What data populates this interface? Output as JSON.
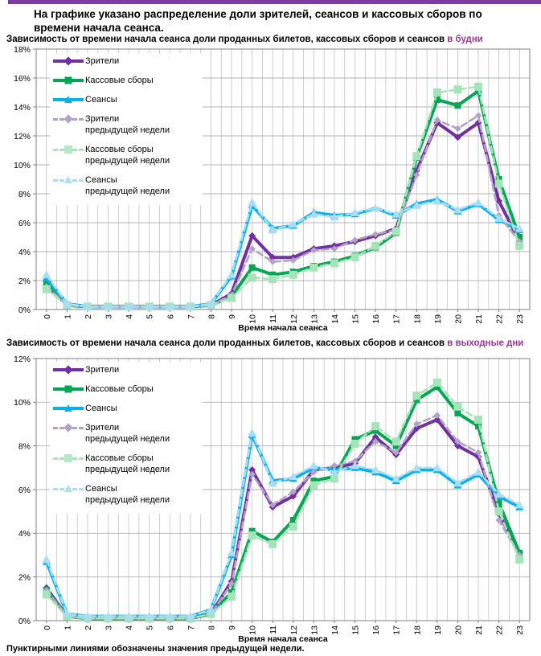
{
  "page": {
    "heading": "На графике указано распределение доли зрителей, сеансов и кассовых сборов по времени начала сеанса.",
    "footer": "Пунктирными линиями обозначены значения предыдущей недели.",
    "accent_bar_color": "#7a3f9d",
    "title_accent_color": "#97399b"
  },
  "legend": [
    {
      "line1": "Зрители",
      "line2": ""
    },
    {
      "line1": "Кассовые сборы",
      "line2": ""
    },
    {
      "line1": "Сеансы",
      "line2": ""
    },
    {
      "line1": "Зрители",
      "line2": "предыдущей недели"
    },
    {
      "line1": "Кассовые сборы",
      "line2": "предыдущей недели"
    },
    {
      "line1": "Сеансы",
      "line2": "предыдущей недели"
    }
  ],
  "chart_data": [
    {
      "type": "line",
      "title": "Зависимость от времени начала сеанса доли проданных билетов, кассовых сборов и сеансов ",
      "title_accent": "в будни",
      "xlabel": "Время начала сеанса",
      "ylim": [
        0,
        18
      ],
      "ystep": 2,
      "y_unit": "%",
      "grid": true,
      "legend_position": "top-left",
      "categories": [
        0,
        1,
        2,
        3,
        4,
        5,
        6,
        7,
        8,
        9,
        10,
        11,
        12,
        13,
        14,
        15,
        16,
        17,
        18,
        19,
        20,
        21,
        22,
        23
      ],
      "series": [
        {
          "name": "Зрители",
          "color": "#7030a0",
          "marker": "diamond",
          "dash": false,
          "values": [
            1.7,
            0.3,
            0.2,
            0.2,
            0.2,
            0.2,
            0.2,
            0.2,
            0.3,
            1.1,
            5.1,
            3.6,
            3.6,
            4.2,
            4.4,
            4.7,
            5.1,
            5.6,
            9.6,
            12.9,
            11.9,
            12.9,
            7.5,
            4.7
          ]
        },
        {
          "name": "Кассовые сборы",
          "color": "#00a651",
          "marker": "square",
          "dash": false,
          "values": [
            1.8,
            0.3,
            0.2,
            0.2,
            0.2,
            0.2,
            0.2,
            0.2,
            0.3,
            0.9,
            2.9,
            2.4,
            2.6,
            3.0,
            3.3,
            3.7,
            4.3,
            5.3,
            10.5,
            14.5,
            14.1,
            15.1,
            9.0,
            5.0
          ]
        },
        {
          "name": "Сеансы",
          "color": "#00b0f0",
          "marker": "triangle",
          "dash": false,
          "values": [
            2.2,
            0.4,
            0.2,
            0.2,
            0.2,
            0.2,
            0.2,
            0.2,
            0.4,
            2.3,
            7.2,
            5.6,
            5.8,
            6.7,
            6.5,
            6.6,
            7.0,
            6.5,
            7.3,
            7.6,
            6.8,
            7.3,
            6.2,
            5.5
          ]
        },
        {
          "name": "Зрители предыдущей недели",
          "color": "#b2a2c9",
          "marker": "diamond",
          "dash": true,
          "values": [
            1.6,
            0.3,
            0.2,
            0.2,
            0.2,
            0.2,
            0.2,
            0.2,
            0.3,
            1.0,
            4.2,
            3.3,
            3.4,
            4.1,
            4.2,
            4.8,
            5.2,
            5.5,
            9.3,
            13.1,
            12.5,
            13.4,
            6.5,
            4.7
          ]
        },
        {
          "name": "Кассовые сборы предыдущей недели",
          "color": "#a5e3b9",
          "marker": "square",
          "dash": true,
          "values": [
            1.4,
            0.3,
            0.2,
            0.2,
            0.2,
            0.2,
            0.2,
            0.2,
            0.3,
            0.8,
            2.2,
            2.1,
            2.4,
            2.9,
            3.2,
            3.6,
            4.4,
            5.4,
            10.6,
            15.0,
            15.2,
            15.4,
            8.7,
            4.4
          ]
        },
        {
          "name": "Сеансы предыдущей недели",
          "color": "#a9ddf3",
          "marker": "triangle",
          "dash": true,
          "values": [
            2.4,
            0.4,
            0.2,
            0.2,
            0.2,
            0.2,
            0.2,
            0.2,
            0.4,
            2.4,
            7.4,
            5.5,
            5.9,
            6.6,
            6.4,
            6.7,
            7.0,
            6.6,
            7.2,
            7.5,
            6.9,
            7.4,
            6.3,
            5.6
          ]
        }
      ]
    },
    {
      "type": "line",
      "title": "Зависимость от времени начала сеанса доли проданных билетов, кассовых сборов и сеансов ",
      "title_accent": "в выходные дни",
      "xlabel": "Время начала сеанса",
      "ylim": [
        0,
        12
      ],
      "ystep": 2,
      "y_unit": "%",
      "grid": true,
      "legend_position": "top-left",
      "categories": [
        0,
        1,
        2,
        3,
        4,
        5,
        6,
        7,
        8,
        9,
        10,
        11,
        12,
        13,
        14,
        15,
        16,
        17,
        18,
        19,
        20,
        21,
        22,
        23
      ],
      "series": [
        {
          "name": "Зрители",
          "color": "#7030a0",
          "marker": "diamond",
          "dash": false,
          "values": [
            1.5,
            0.2,
            0.1,
            0.1,
            0.1,
            0.1,
            0.1,
            0.1,
            0.3,
            1.8,
            6.9,
            5.2,
            5.7,
            6.9,
            7.0,
            7.2,
            8.4,
            7.6,
            8.8,
            9.2,
            8.0,
            7.5,
            4.9,
            3.1
          ]
        },
        {
          "name": "Кассовые сборы",
          "color": "#00a651",
          "marker": "square",
          "dash": false,
          "values": [
            1.4,
            0.2,
            0.1,
            0.1,
            0.1,
            0.1,
            0.1,
            0.1,
            0.3,
            1.3,
            4.1,
            3.6,
            4.6,
            6.4,
            6.6,
            8.3,
            8.7,
            8.0,
            10.1,
            10.7,
            9.5,
            8.9,
            5.4,
            3.1
          ]
        },
        {
          "name": "Сеансы",
          "color": "#00b0f0",
          "marker": "triangle",
          "dash": false,
          "values": [
            2.7,
            0.3,
            0.2,
            0.2,
            0.2,
            0.2,
            0.2,
            0.2,
            0.5,
            3.0,
            8.5,
            6.4,
            6.5,
            7.0,
            6.9,
            7.0,
            6.8,
            6.4,
            6.9,
            6.9,
            6.2,
            6.7,
            5.7,
            5.2
          ]
        },
        {
          "name": "Зрители предыдущей недели",
          "color": "#b2a2c9",
          "marker": "diamond",
          "dash": true,
          "values": [
            1.4,
            0.2,
            0.1,
            0.1,
            0.1,
            0.1,
            0.1,
            0.1,
            0.3,
            1.7,
            6.7,
            5.3,
            5.9,
            6.8,
            7.1,
            7.3,
            8.2,
            7.7,
            9.0,
            9.4,
            8.2,
            7.7,
            4.6,
            3.0
          ]
        },
        {
          "name": "Кассовые сборы предыдущей недели",
          "color": "#a5e3b9",
          "marker": "square",
          "dash": true,
          "values": [
            1.2,
            0.2,
            0.1,
            0.1,
            0.1,
            0.1,
            0.1,
            0.1,
            0.3,
            1.1,
            3.9,
            3.5,
            4.3,
            6.2,
            6.5,
            8.1,
            8.9,
            8.2,
            10.3,
            10.9,
            9.8,
            9.2,
            5.0,
            2.8
          ]
        },
        {
          "name": "Сеансы предыдущей недели",
          "color": "#a9ddf3",
          "marker": "triangle",
          "dash": true,
          "values": [
            2.8,
            0.3,
            0.2,
            0.2,
            0.2,
            0.2,
            0.2,
            0.2,
            0.5,
            3.1,
            8.6,
            6.3,
            6.6,
            7.1,
            6.8,
            7.1,
            6.9,
            6.5,
            7.0,
            7.0,
            6.3,
            6.8,
            5.8,
            5.3
          ]
        }
      ]
    }
  ]
}
